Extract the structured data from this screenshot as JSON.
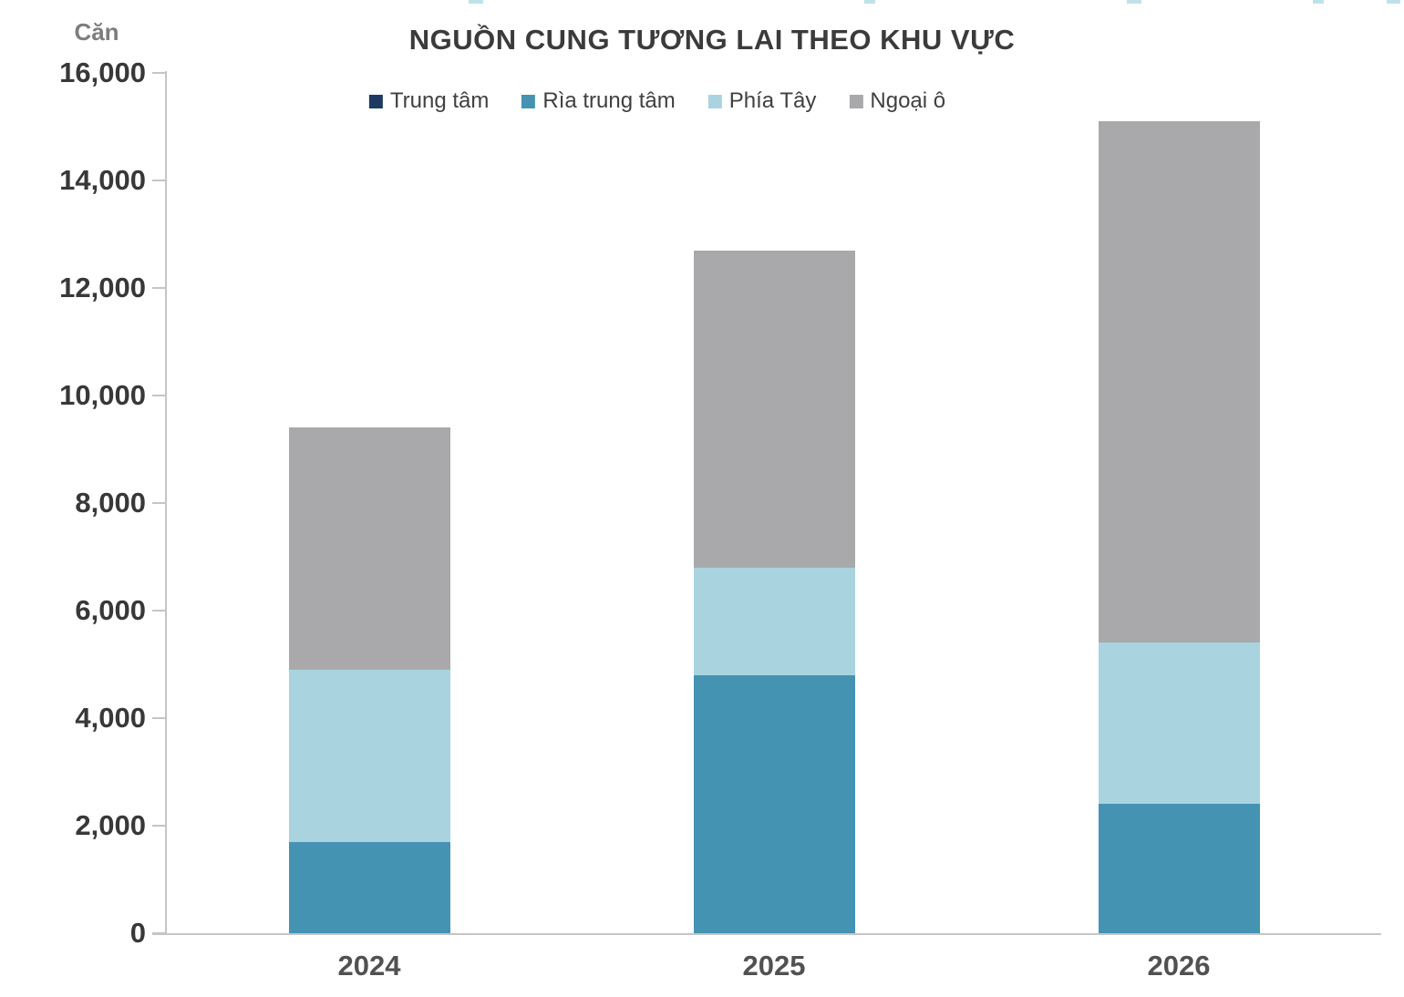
{
  "chart_data": {
    "type": "bar",
    "stacked": true,
    "title": "NGUỒN CUNG TƯƠNG LAI THEO KHU VỰC",
    "ylabel": "Căn",
    "xlabel": "",
    "categories": [
      "2024",
      "2025",
      "2026"
    ],
    "series": [
      {
        "name": "Trung tâm",
        "color": "#1e3a63",
        "values": [
          0,
          0,
          0
        ]
      },
      {
        "name": "Rìa trung tâm",
        "color": "#4593b3",
        "values": [
          1700,
          4800,
          2400
        ]
      },
      {
        "name": "Phía Tây",
        "color": "#a9d4df",
        "values": [
          3200,
          2000,
          3000
        ]
      },
      {
        "name": "Ngoại ô",
        "color": "#a9a9ab",
        "values": [
          4500,
          5900,
          9700
        ]
      }
    ],
    "totals": [
      9400,
      12700,
      15100
    ],
    "ylim": [
      0,
      16000
    ],
    "ytick_step": 2000,
    "yticks": [
      {
        "value": 0,
        "label": "0"
      },
      {
        "value": 2000,
        "label": "2,000"
      },
      {
        "value": 4000,
        "label": "4,000"
      },
      {
        "value": 6000,
        "label": "6,000"
      },
      {
        "value": 8000,
        "label": "8,000"
      },
      {
        "value": 10000,
        "label": "10,000"
      },
      {
        "value": 12000,
        "label": "12,000"
      },
      {
        "value": 14000,
        "label": "14,000"
      },
      {
        "value": 16000,
        "label": "16,000"
      }
    ],
    "legend_position": "top",
    "grid": false,
    "axis_color": "#c5c5c5"
  }
}
